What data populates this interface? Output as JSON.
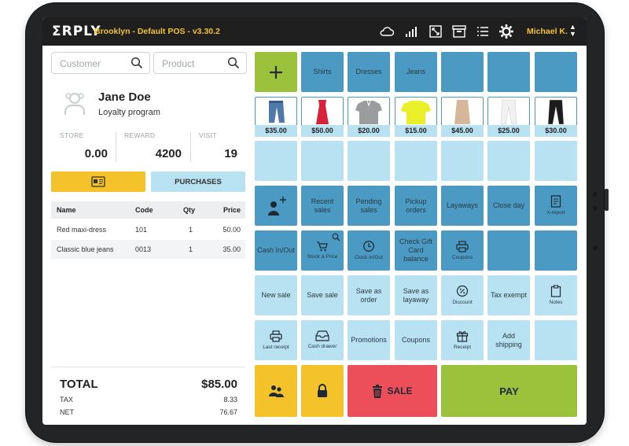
{
  "app": {
    "logo": "ΣRPLY",
    "store_title": "Brooklyn - Default POS - v3.30.2",
    "user": "Michael K.",
    "user_chevron": "▲\n▼",
    "toolbar_icons": [
      "cloud-icon",
      "signal-icon",
      "resize-icon",
      "archive-icon",
      "list-icon",
      "gear-icon"
    ]
  },
  "customer": {
    "customer_placeholder": "Customer",
    "product_placeholder": "Product",
    "name": "Jane Doe",
    "program": "Loyalty program",
    "stats": [
      {
        "label": "STORE",
        "value": "0.00"
      },
      {
        "label": "REWARD",
        "value": "4200"
      },
      {
        "label": "VISIT",
        "value": "19"
      }
    ],
    "purchases_label": "PURCHASES"
  },
  "cart": {
    "headers": {
      "name": "Name",
      "code": "Code",
      "qty": "Qty",
      "price": "Price"
    },
    "rows": [
      {
        "name": "Red maxi-dress",
        "code": "101",
        "qty": "1",
        "price": "50.00"
      },
      {
        "name": "Classic blue jeans",
        "code": "0013",
        "qty": "1",
        "price": "35.00"
      }
    ],
    "total_label": "TOTAL",
    "total_value": "$85.00",
    "tax_label": "TAX",
    "tax_value": "8.33",
    "net_label": "NET",
    "net_value": "76.67"
  },
  "categories": [
    "Shirts",
    "Dresses",
    "Jeans"
  ],
  "products": [
    {
      "price": "$35.00",
      "kind": "jeans",
      "color": "#4f79a8"
    },
    {
      "price": "$50.00",
      "kind": "dress",
      "color": "#d8213a"
    },
    {
      "price": "$20.00",
      "kind": "polo",
      "color": "#9a9c9e"
    },
    {
      "price": "$15.00",
      "kind": "tshirt",
      "color": "#e9f02a"
    },
    {
      "price": "$45.00",
      "kind": "skirt",
      "color": "#d7b79a"
    },
    {
      "price": "$25.00",
      "kind": "pants",
      "color": "#f1f1f1"
    },
    {
      "price": "$30.00",
      "kind": "pants",
      "color": "#1c1c1c"
    }
  ],
  "functions": {
    "recent_sales": "Recent sales",
    "pending_sales": "Pending sales",
    "pickup_orders": "Pickup orders",
    "layaways": "Layaways",
    "close_day": "Close day",
    "x_report": "X-report",
    "cash_in_out": "Cash In/Out",
    "stock_price": "Stock & Price",
    "clock_in_out": "Clock In/Out",
    "check_gift_card": "Check Gift Card balance",
    "coupons_small": "Coupons",
    "new_sale": "New sale",
    "save_sale": "Save sale",
    "save_as_order": "Save as order",
    "save_as_layaway": "Save as layaway",
    "discount": "Discount",
    "tax_exempt": "Tax exempt",
    "notes": "Notes",
    "last_receipt": "Last receipt",
    "cash_drawer": "Cash drawer",
    "promotions": "Promotions",
    "coupons": "Coupons",
    "receipt": "Receipt",
    "add_shipping": "Add shipping"
  },
  "actions": {
    "sale": "SALE",
    "pay": "PAY"
  },
  "colors": {
    "dark_tile": "#4a9ac3",
    "light_tile": "#b8e1f2",
    "green": "#9cc13b",
    "yellow": "#f4c22b",
    "red": "#ec4f5a",
    "accent_text": "#f4c22b",
    "topbar": "#1f1f20"
  }
}
